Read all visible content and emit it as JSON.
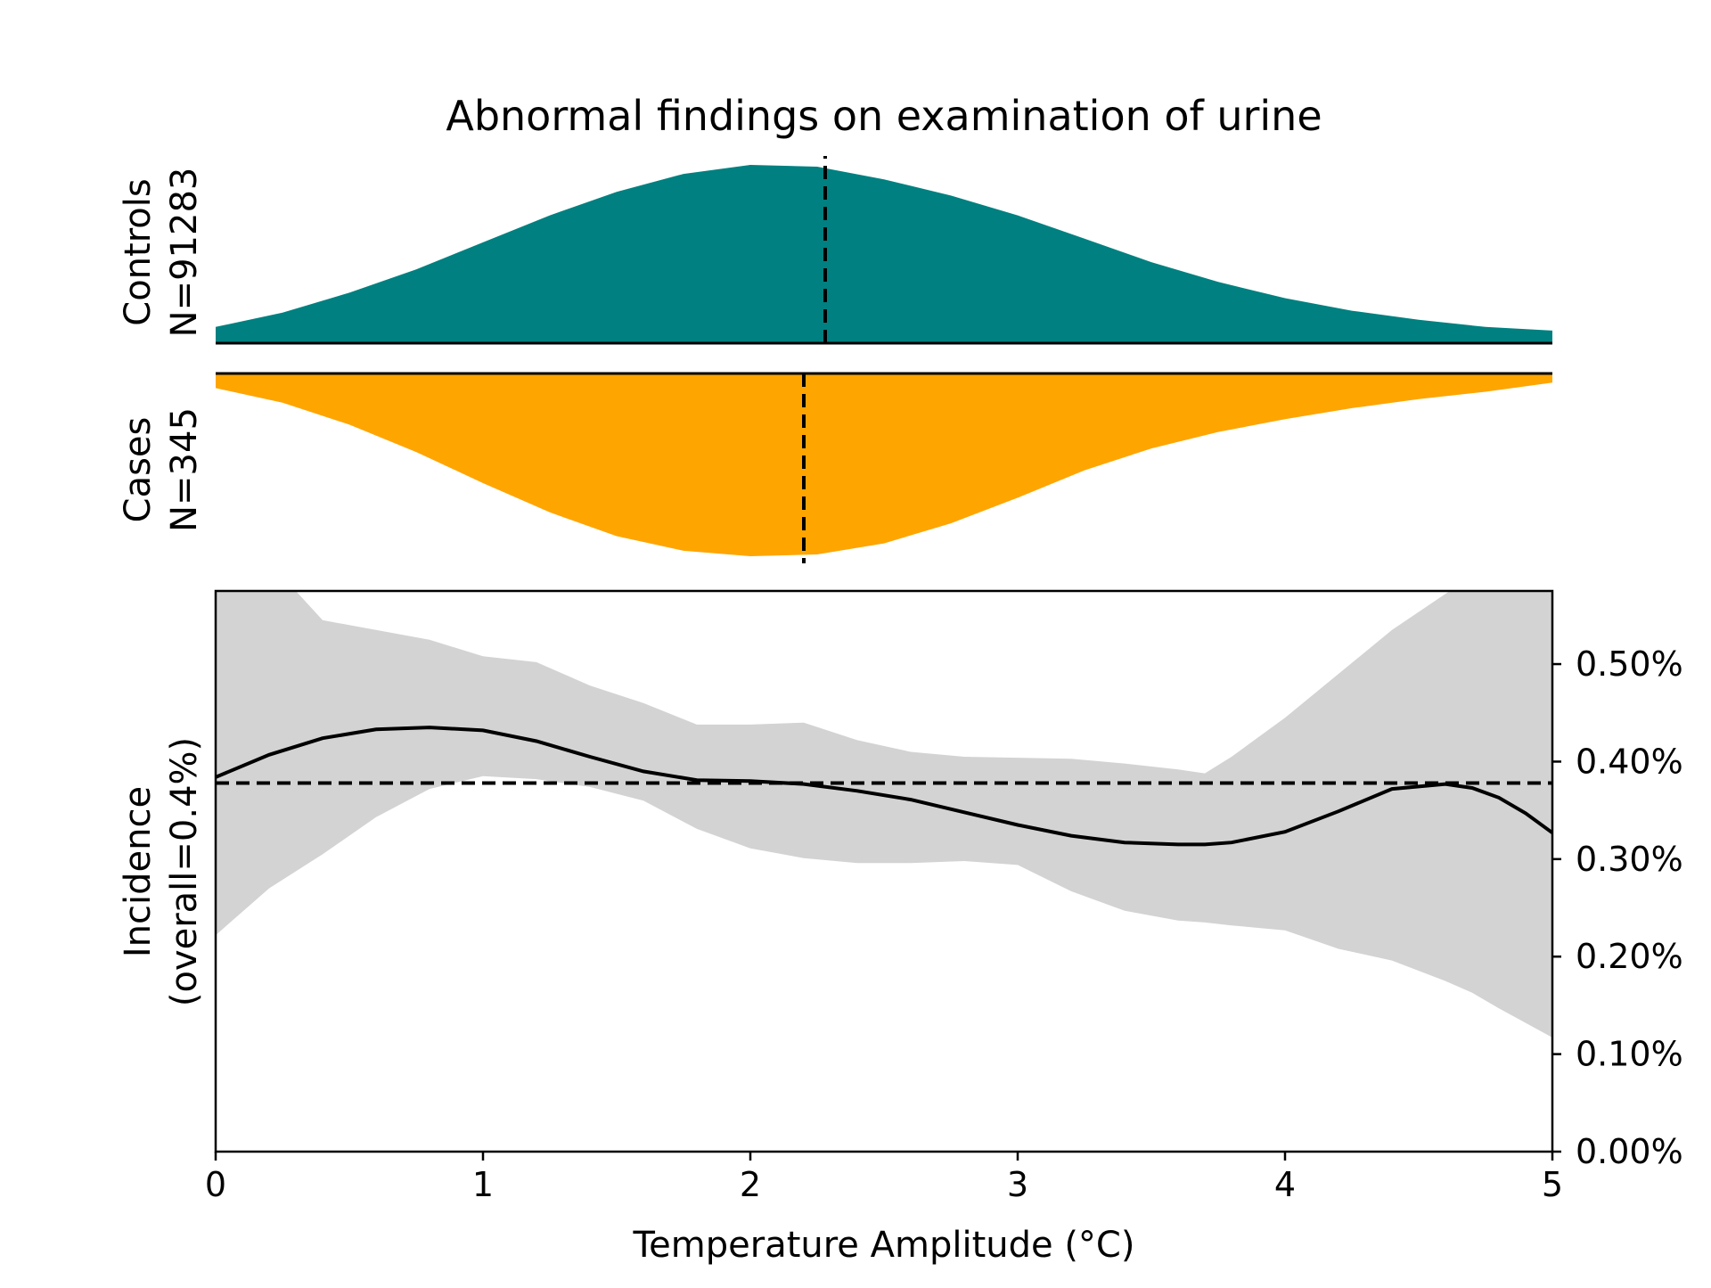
{
  "chart_data": {
    "type": "area",
    "title": "Abnormal findings on examination of urine",
    "xlabel": "Temperature Amplitude (°C)",
    "xlim": [
      0,
      5
    ],
    "x_ticks": [
      0,
      1,
      2,
      3,
      4,
      5
    ],
    "x_tick_labels": [
      "0",
      "1",
      "2",
      "3",
      "4",
      "5"
    ],
    "panels": {
      "controls": {
        "label_line1": "Controls",
        "label_line2": "N=91283",
        "color": "#008080",
        "median": 2.28,
        "density": {
          "x": [
            0,
            0.25,
            0.5,
            0.75,
            1.0,
            1.25,
            1.5,
            1.75,
            2.0,
            2.25,
            2.5,
            2.75,
            3.0,
            3.25,
            3.5,
            3.75,
            4.0,
            4.25,
            4.5,
            4.75,
            5.0
          ],
          "y": [
            0.09,
            0.17,
            0.28,
            0.41,
            0.56,
            0.71,
            0.84,
            0.94,
            0.99,
            0.98,
            0.91,
            0.82,
            0.71,
            0.58,
            0.45,
            0.34,
            0.25,
            0.18,
            0.13,
            0.09,
            0.07
          ]
        }
      },
      "cases": {
        "label_line1": "Cases",
        "label_line2": "N=345",
        "color": "#FFA500",
        "median": 2.2,
        "density": {
          "x": [
            0,
            0.25,
            0.5,
            0.75,
            1.0,
            1.25,
            1.5,
            1.75,
            2.0,
            2.25,
            2.5,
            2.75,
            3.0,
            3.25,
            3.5,
            3.75,
            4.0,
            4.25,
            4.5,
            4.75,
            5.0
          ],
          "y": [
            0.08,
            0.16,
            0.28,
            0.43,
            0.6,
            0.76,
            0.89,
            0.97,
            1.0,
            0.99,
            0.93,
            0.82,
            0.68,
            0.53,
            0.41,
            0.32,
            0.25,
            0.19,
            0.14,
            0.1,
            0.05
          ]
        }
      }
    },
    "incidence": {
      "ylabel_line1": "Incidence",
      "ylabel_line2": "(overall=0.4%)",
      "ylim": [
        0,
        0.575
      ],
      "y_ticks": [
        0,
        0.1,
        0.2,
        0.3,
        0.4,
        0.5
      ],
      "y_tick_labels": [
        "0.00%",
        "0.10%",
        "0.20%",
        "0.30%",
        "0.40%",
        "0.50%"
      ],
      "overall": 0.378,
      "line_color": "#000000",
      "band_color": "#D3D3D3",
      "x": [
        0,
        0.2,
        0.4,
        0.6,
        0.8,
        1.0,
        1.2,
        1.4,
        1.6,
        1.8,
        2.0,
        2.2,
        2.4,
        2.6,
        2.8,
        3.0,
        3.2,
        3.4,
        3.6,
        3.7,
        3.8,
        4.0,
        4.2,
        4.4,
        4.6,
        4.7,
        4.8,
        4.9,
        5.0
      ],
      "estimate": [
        0.384,
        0.407,
        0.424,
        0.433,
        0.435,
        0.432,
        0.421,
        0.405,
        0.39,
        0.381,
        0.38,
        0.377,
        0.37,
        0.361,
        0.348,
        0.335,
        0.324,
        0.317,
        0.315,
        0.315,
        0.317,
        0.328,
        0.349,
        0.372,
        0.377,
        0.373,
        0.363,
        0.347,
        0.327
      ],
      "lower": [
        0.222,
        0.27,
        0.305,
        0.343,
        0.372,
        0.385,
        0.382,
        0.374,
        0.36,
        0.331,
        0.311,
        0.301,
        0.296,
        0.296,
        0.298,
        0.294,
        0.267,
        0.247,
        0.237,
        0.235,
        0.232,
        0.227,
        0.208,
        0.196,
        0.175,
        0.163,
        0.147,
        0.132,
        0.117
      ],
      "upper": [
        0.66,
        0.605,
        0.545,
        0.535,
        0.525,
        0.508,
        0.502,
        0.478,
        0.46,
        0.438,
        0.438,
        0.44,
        0.422,
        0.41,
        0.405,
        0.404,
        0.403,
        0.398,
        0.392,
        0.388,
        0.405,
        0.445,
        0.49,
        0.535,
        0.572,
        0.59,
        0.62,
        0.66,
        0.7
      ]
    }
  }
}
